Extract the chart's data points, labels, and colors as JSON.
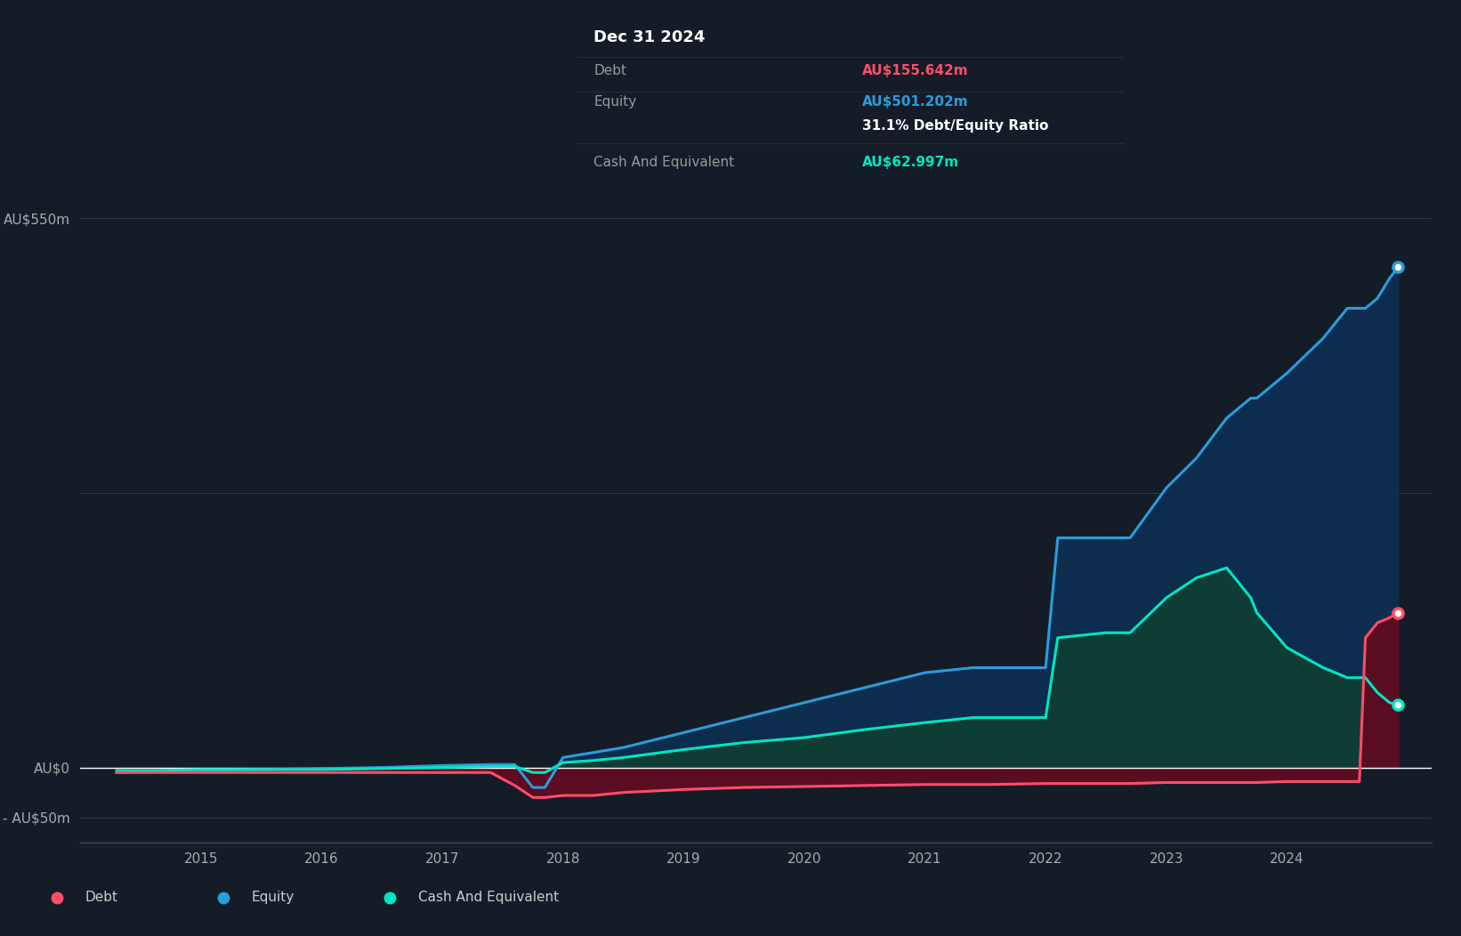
{
  "background_color": "#141d27",
  "plot_bg_color": "#141d27",
  "grid_color": "#2a3a4a",
  "debt_color": "#ff4d6a",
  "equity_color": "#2b9cdb",
  "cash_color": "#00e5c3",
  "debt_fill": "#5a0d20",
  "equity_fill": "#0d2d4e",
  "cash_fill": "#0d3d35",
  "tooltip_bg": "#000000",
  "tooltip_title": "Dec 31 2024",
  "tooltip_debt_label": "Debt",
  "tooltip_debt_value": "AU$155.642m",
  "tooltip_equity_label": "Equity",
  "tooltip_equity_value": "AU$501.202m",
  "tooltip_ratio": "31.1% Debt/Equity Ratio",
  "tooltip_cash_label": "Cash And Equivalent",
  "tooltip_cash_value": "AU$62.997m",
  "legend_debt": "Debt",
  "legend_equity": "Equity",
  "legend_cash": "Cash And Equivalent",
  "years": [
    2014.3,
    2014.6,
    2015.0,
    2015.5,
    2016.0,
    2016.5,
    2017.0,
    2017.4,
    2017.6,
    2017.75,
    2017.85,
    2018.0,
    2018.25,
    2018.5,
    2019.0,
    2019.5,
    2020.0,
    2020.5,
    2021.0,
    2021.4,
    2021.5,
    2021.55,
    2022.0,
    2022.1,
    2022.5,
    2022.6,
    2022.7,
    2023.0,
    2023.25,
    2023.5,
    2023.7,
    2023.75,
    2024.0,
    2024.3,
    2024.5,
    2024.6,
    2024.65,
    2024.75,
    2024.85,
    2024.92
  ],
  "debt": [
    -5,
    -5,
    -5,
    -5,
    -5,
    -5,
    -5,
    -5,
    -18,
    -30,
    -30,
    -28,
    -28,
    -25,
    -22,
    -20,
    -19,
    -18,
    -17,
    -17,
    -17,
    -17,
    -16,
    -16,
    -16,
    -16,
    -16,
    -15,
    -15,
    -15,
    -15,
    -15,
    -14,
    -14,
    -14,
    -14,
    130,
    145,
    150,
    155
  ],
  "equity": [
    -5,
    -4,
    -3,
    -2,
    -1,
    0,
    2,
    3,
    3,
    -20,
    -20,
    10,
    15,
    20,
    35,
    50,
    65,
    80,
    95,
    100,
    100,
    100,
    100,
    230,
    230,
    230,
    230,
    280,
    310,
    350,
    370,
    370,
    395,
    430,
    460,
    460,
    460,
    470,
    490,
    501
  ],
  "cash": [
    -3,
    -3,
    -2,
    -2,
    -2,
    -1,
    0,
    1,
    1,
    -5,
    -5,
    5,
    7,
    10,
    18,
    25,
    30,
    38,
    45,
    50,
    50,
    50,
    50,
    130,
    135,
    135,
    135,
    170,
    190,
    200,
    170,
    155,
    120,
    100,
    90,
    90,
    90,
    75,
    65,
    63
  ],
  "ylim": [
    -75,
    600
  ],
  "xlim_min": 2014.0,
  "xlim_max": 2025.2
}
